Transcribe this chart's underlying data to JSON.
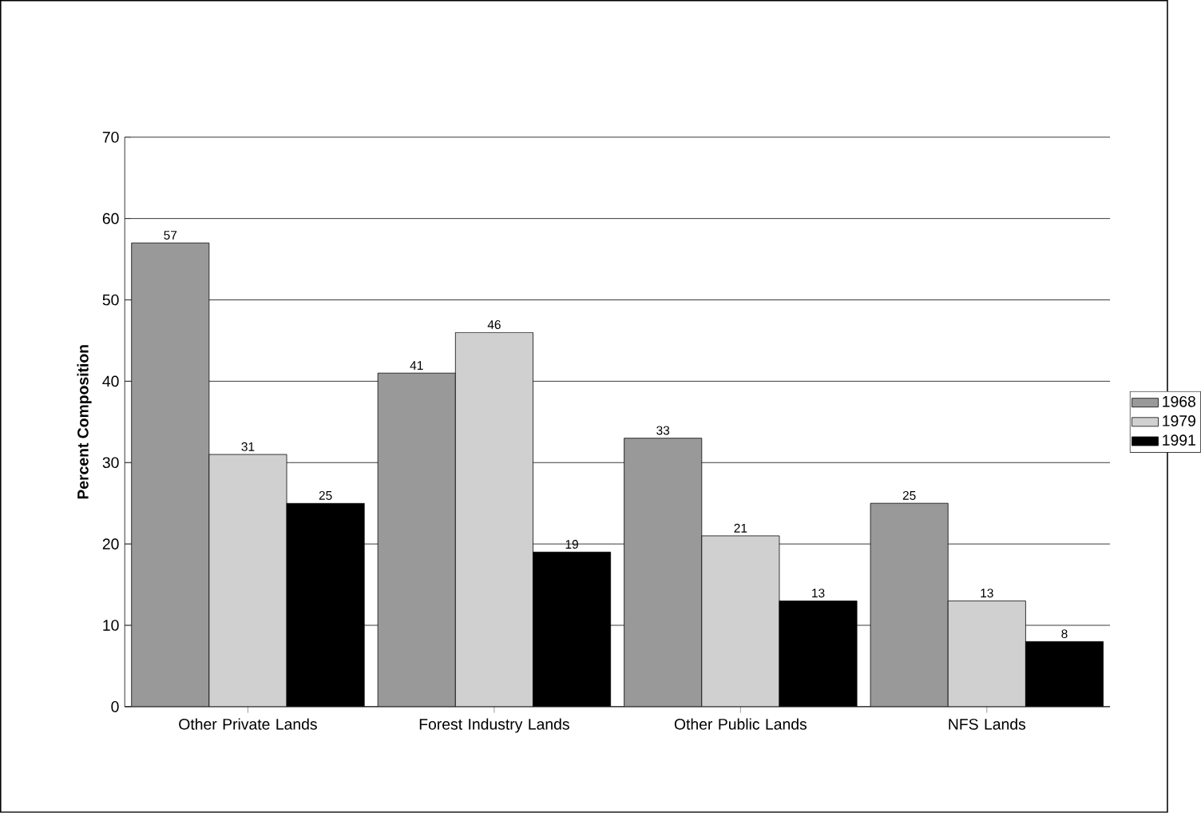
{
  "chart_data": {
    "type": "bar",
    "ylabel": "Percent Composition",
    "categories": [
      "Other Private Lands",
      "Forest Industry Lands",
      "Other Public Lands",
      "NFS Lands"
    ],
    "series": [
      {
        "name": "1968",
        "color": "#999999",
        "values": [
          57,
          41,
          33,
          25
        ]
      },
      {
        "name": "1979",
        "color": "#d0d0d0",
        "values": [
          31,
          46,
          21,
          13
        ]
      },
      {
        "name": "1991",
        "color": "#000000",
        "values": [
          25,
          19,
          13,
          8
        ]
      }
    ],
    "ylim": [
      0,
      70
    ],
    "yticks": [
      0,
      10,
      20,
      30,
      40,
      50,
      60,
      70
    ],
    "grid": "y",
    "legend": "right",
    "data_labels": true
  }
}
